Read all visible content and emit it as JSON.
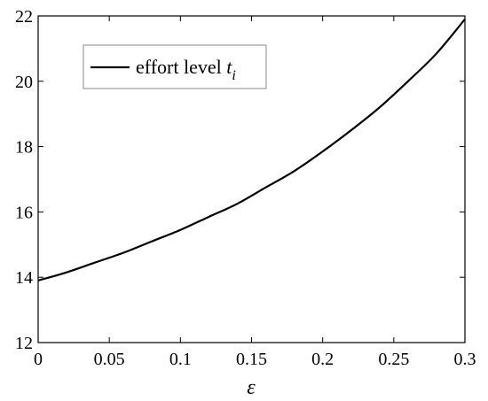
{
  "chart_data": {
    "type": "line",
    "xlabel": "ε",
    "ylabel": "",
    "xlim": [
      0,
      0.3
    ],
    "ylim": [
      12,
      22
    ],
    "xticks": [
      "0",
      "0.05",
      "0.1",
      "0.15",
      "0.2",
      "0.25",
      "0.3"
    ],
    "yticks": [
      "12",
      "14",
      "16",
      "18",
      "20",
      "22"
    ],
    "grid": false,
    "legend_position": "top-left",
    "legend": {
      "text": "effort level ",
      "var": "t",
      "sub": "i"
    },
    "series": [
      {
        "name": "effort level t_i",
        "color": "#000000",
        "x": [
          0,
          0.02,
          0.04,
          0.06,
          0.08,
          0.1,
          0.12,
          0.14,
          0.16,
          0.18,
          0.2,
          0.22,
          0.24,
          0.26,
          0.28,
          0.3
        ],
        "y": [
          13.9,
          14.15,
          14.45,
          14.75,
          15.1,
          15.45,
          15.85,
          16.25,
          16.75,
          17.25,
          17.85,
          18.5,
          19.2,
          20.0,
          20.85,
          21.9
        ]
      }
    ]
  }
}
